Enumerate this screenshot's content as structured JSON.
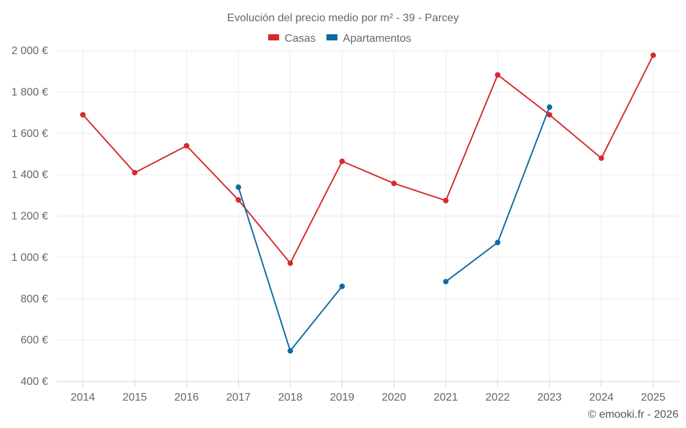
{
  "chart_data": {
    "type": "line",
    "title": "Evolución del precio medio por m² - 39 - Parcey",
    "xlabel": "",
    "ylabel": "",
    "categories": [
      "2014",
      "2015",
      "2016",
      "2017",
      "2018",
      "2019",
      "2020",
      "2021",
      "2022",
      "2023",
      "2024",
      "2025"
    ],
    "ylim": [
      400,
      2000
    ],
    "yticks": [
      400,
      600,
      800,
      1000,
      1200,
      1400,
      1600,
      1800,
      2000
    ],
    "ytick_labels": [
      "400 €",
      "600 €",
      "800 €",
      "1 000 €",
      "1 200 €",
      "1 400 €",
      "1 600 €",
      "1 800 €",
      "2 000 €"
    ],
    "grid": true,
    "legend_position": "top-center",
    "series": [
      {
        "name": "Casas",
        "color": "#d62a2a",
        "values": [
          1690,
          1410,
          1540,
          1278,
          972,
          1465,
          1358,
          1275,
          1883,
          1690,
          1480,
          1978
        ]
      },
      {
        "name": "Apartamentos",
        "color": "#0f6aa0",
        "values": [
          null,
          null,
          null,
          1340,
          548,
          860,
          null,
          883,
          1072,
          1727,
          null,
          null
        ]
      }
    ],
    "credit": "© emooki.fr - 2026"
  }
}
